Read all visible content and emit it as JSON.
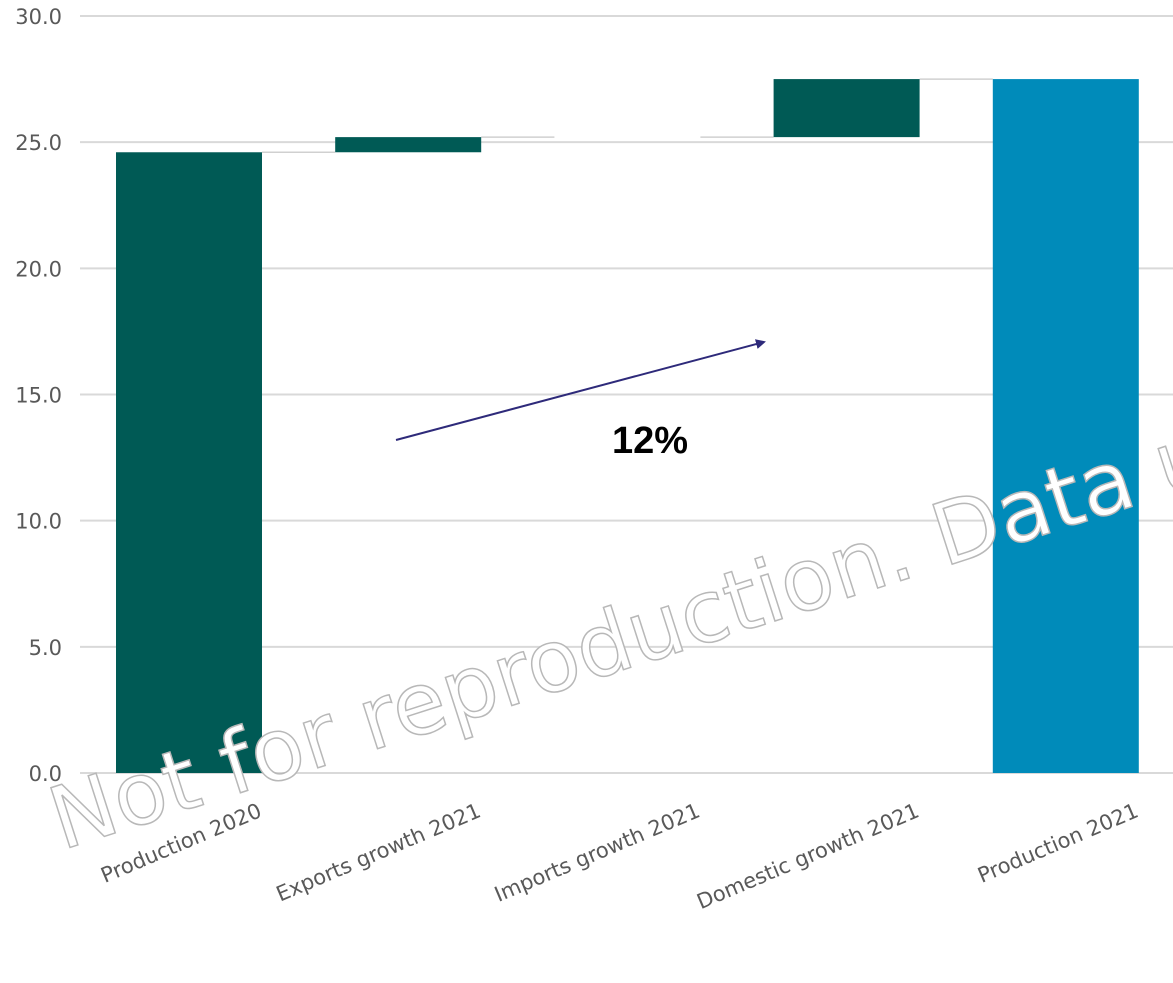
{
  "chart_data": {
    "type": "bar",
    "subtype": "waterfall",
    "categories": [
      "Production 2020",
      "Exports growth 2021",
      "Imports growth 2021",
      "Domestic growth 2021",
      "Production 2021"
    ],
    "bars": [
      {
        "category": "Production 2020",
        "kind": "total",
        "start": 0,
        "end": 24.6,
        "color": "#005a55"
      },
      {
        "category": "Exports growth 2021",
        "kind": "delta",
        "start": 24.6,
        "end": 25.2,
        "color": "#005a55"
      },
      {
        "category": "Imports growth 2021",
        "kind": "delta",
        "start": 25.2,
        "end": 25.2,
        "color": "#005a55"
      },
      {
        "category": "Domestic growth 2021",
        "kind": "delta",
        "start": 25.2,
        "end": 27.5,
        "color": "#005a55"
      },
      {
        "category": "Production 2021",
        "kind": "total",
        "start": 0,
        "end": 27.5,
        "color": "#008bba"
      }
    ],
    "ylim": [
      0,
      30
    ],
    "yticks": [
      "0.0",
      "5.0",
      "10.0",
      "15.0",
      "20.0",
      "25.0",
      "30.0"
    ],
    "grid": true,
    "annotation": {
      "text": "12%",
      "arrow_color": "#2e2a7a"
    }
  },
  "watermark": "Not for reproduction. Data usage requires permission."
}
